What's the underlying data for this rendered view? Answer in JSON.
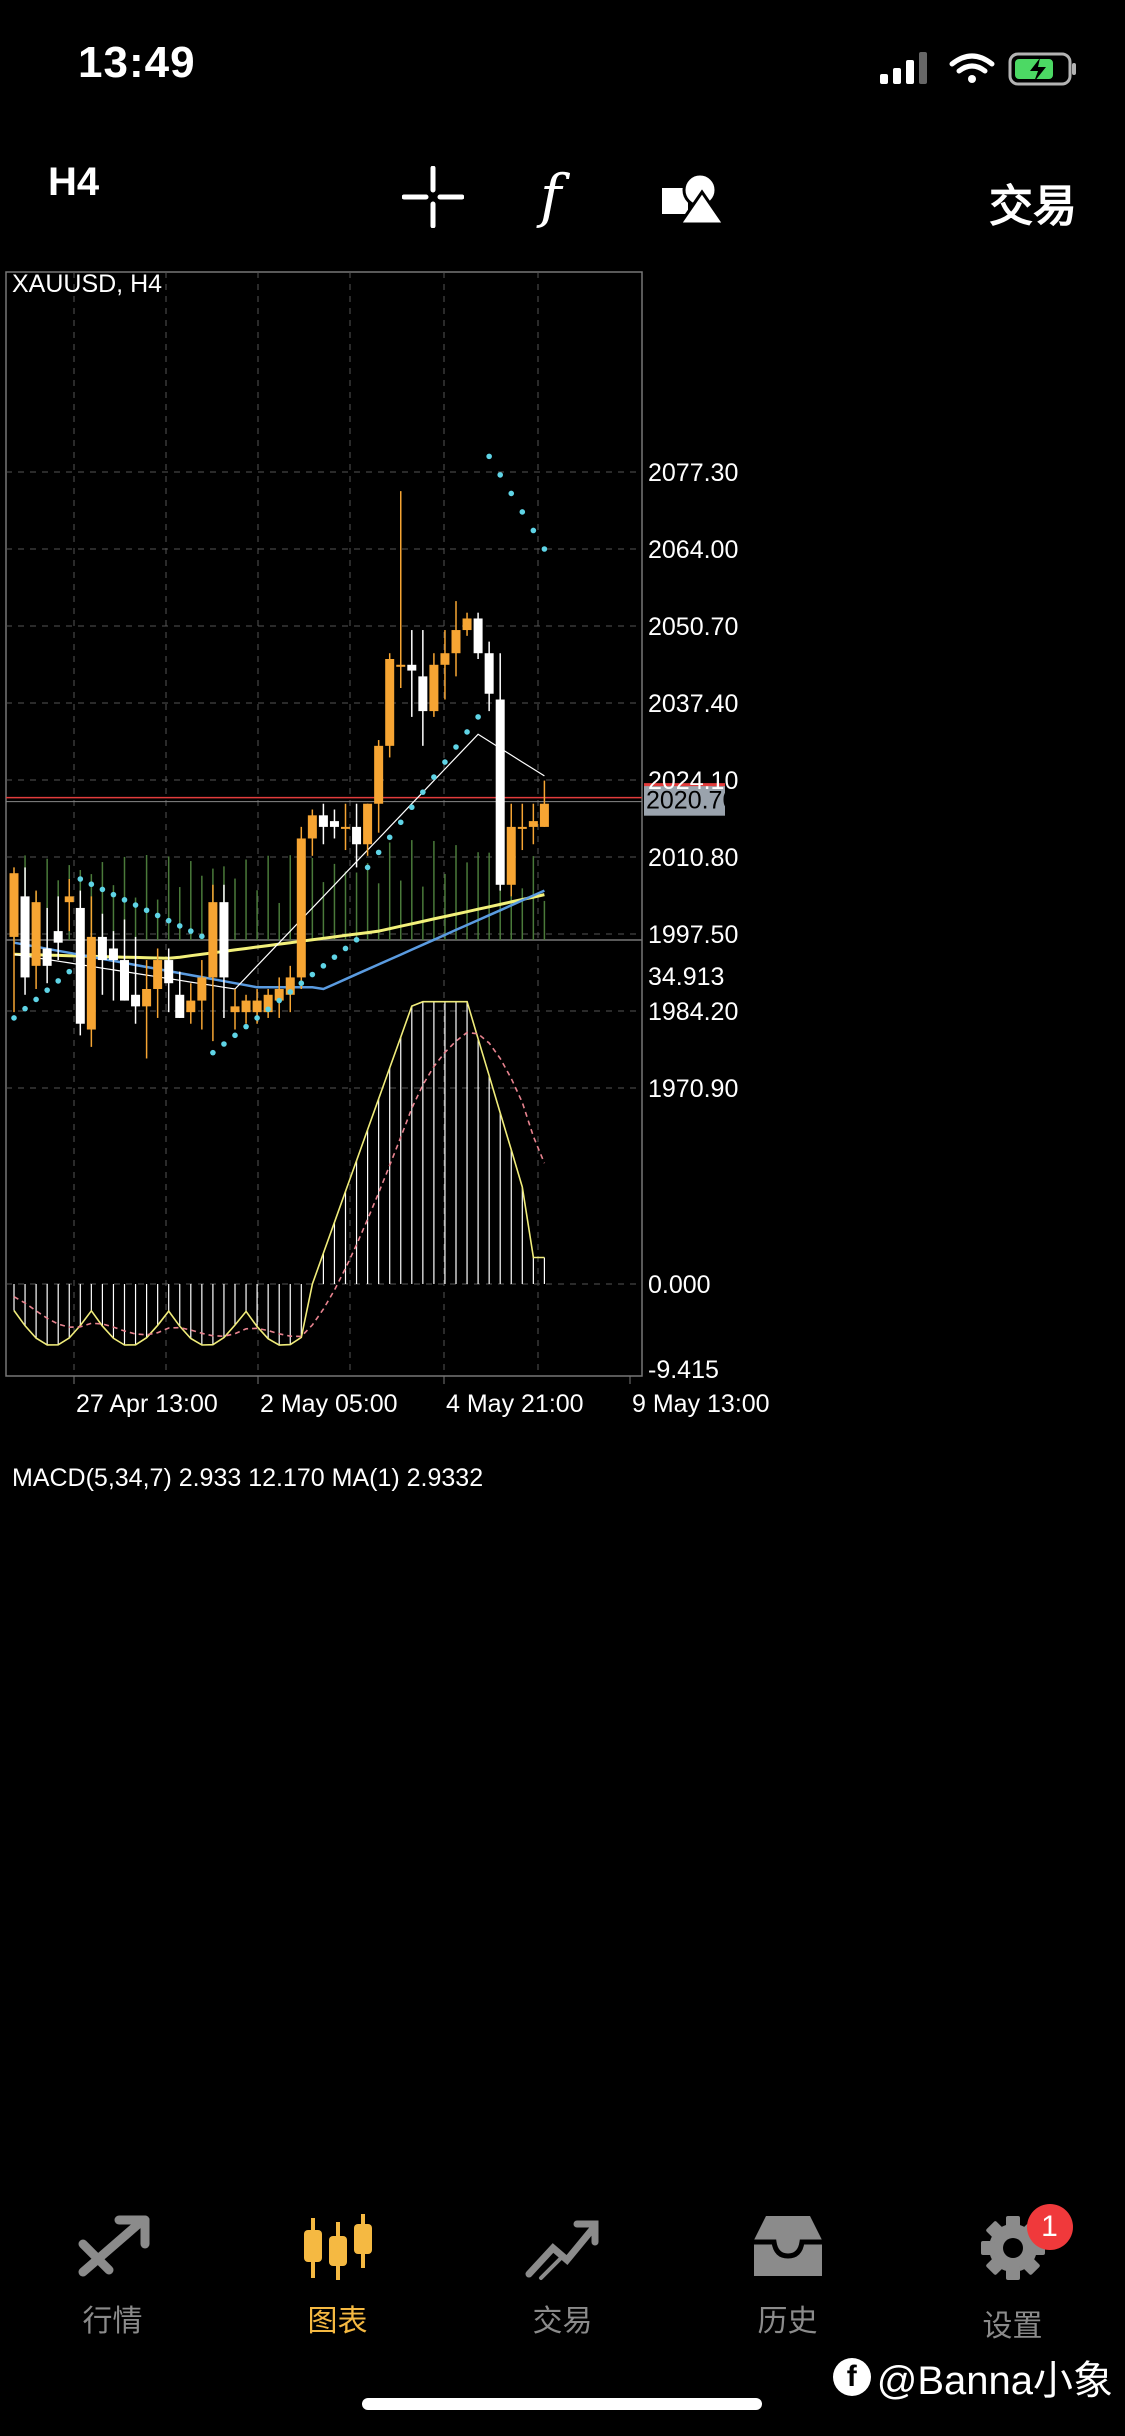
{
  "status": {
    "time": "13:49"
  },
  "toolbar": {
    "timeframe": "H4",
    "trade_label": "交易",
    "icons": [
      "crosshair-icon",
      "function-icon",
      "objects-icon"
    ]
  },
  "chart": {
    "symbol_label": "XAUUSD, H4",
    "price_ticks": [
      "2077.30",
      "2064.00",
      "2050.70",
      "2037.40",
      "2024.10",
      "2010.80",
      "1997.50",
      "1984.20",
      "1970.90"
    ],
    "current_price": "2020.70",
    "macd_label": "MACD(5,34,7) 2.933 12.170 MA(1) 2.9332",
    "macd_ticks": [
      "34.913",
      "0.000",
      "-9.415"
    ],
    "time_labels": [
      "27 Apr 13:00",
      "2 May 05:00",
      "4 May 21:00",
      "9 May 13:00"
    ],
    "colors": {
      "bull": "#f6a533",
      "bear": "#ffffff",
      "psar": "#5fd4e6",
      "ma_yellow": "#f2f07a",
      "ma_blue": "#5a9be0",
      "ma_white": "#ffffff",
      "price_line": "#e23c3c",
      "macd_signal": "#e8838f"
    }
  },
  "tabs": [
    {
      "label": "行情",
      "icon": "quotes-icon"
    },
    {
      "label": "图表",
      "icon": "chart-icon",
      "active": true
    },
    {
      "label": "交易",
      "icon": "trade-icon"
    },
    {
      "label": "历史",
      "icon": "history-icon"
    },
    {
      "label": "设置",
      "icon": "settings-icon",
      "badge": "1"
    }
  ],
  "watermark": "@Banna小象"
}
